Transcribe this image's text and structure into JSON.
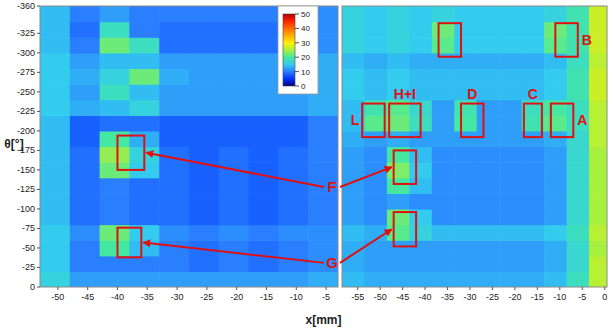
{
  "chart_data": {
    "type": "heatmap",
    "ylabel": "θ[°]",
    "xlabel": "x[mm]",
    "ylim": [
      0,
      -360
    ],
    "yticks": [
      -360,
      -325,
      -300,
      -275,
      -250,
      -225,
      -200,
      -175,
      -150,
      -125,
      -100,
      -75,
      -50,
      -25,
      0
    ],
    "grid": false,
    "colorbar": {
      "range": [
        0,
        50
      ],
      "ticks": [
        0,
        10,
        20,
        30,
        40,
        50
      ]
    },
    "panels": [
      {
        "xlim": [
          -53,
          -3
        ],
        "xticks": [
          -50,
          -45,
          -40,
          -35,
          -30,
          -25,
          -20,
          -15,
          -10,
          -5
        ],
        "cells": {
          "x": [
            -53,
            -48,
            -43,
            -38,
            -33,
            -28,
            -23,
            -18,
            -13,
            -8,
            -3
          ],
          "y": [
            0,
            -20,
            -40,
            -60,
            -80,
            -100,
            -120,
            -140,
            -160,
            -180,
            -200,
            -220,
            -240,
            -260,
            -280,
            -300,
            -320,
            -340,
            -360
          ],
          "values": [
            [
              16,
              12,
              12,
              12,
              12,
              12,
              12,
              12,
              12,
              13
            ],
            [
              15,
              10,
              10,
              10,
              10,
              9,
              10,
              9,
              10,
              11
            ],
            [
              15,
              10,
              20,
              14,
              10,
              9,
              10,
              9,
              10,
              11
            ],
            [
              15,
              11,
              22,
              15,
              11,
              10,
              11,
              10,
              11,
              11
            ],
            [
              14,
              9,
              10,
              9,
              9,
              8,
              9,
              8,
              9,
              10
            ],
            [
              14,
              9,
              10,
              9,
              9,
              8,
              9,
              8,
              9,
              10
            ],
            [
              14,
              9,
              10,
              9,
              9,
              8,
              9,
              8,
              9,
              10
            ],
            [
              14,
              9,
              22,
              15,
              9,
              8,
              9,
              8,
              9,
              10
            ],
            [
              14,
              9,
              24,
              16,
              9,
              8,
              9,
              8,
              9,
              10
            ],
            [
              14,
              8,
              20,
              13,
              8,
              8,
              8,
              8,
              8,
              10
            ],
            [
              14,
              8,
              9,
              9,
              8,
              8,
              8,
              8,
              8,
              10
            ],
            [
              15,
              13,
              14,
              16,
              12,
              12,
              12,
              12,
              12,
              13
            ],
            [
              15,
              12,
              18,
              14,
              12,
              12,
              12,
              12,
              12,
              13
            ],
            [
              15,
              13,
              16,
              22,
              13,
              12,
              12,
              12,
              12,
              13
            ],
            [
              15,
              12,
              14,
              14,
              12,
              12,
              12,
              12,
              12,
              13
            ],
            [
              14,
              10,
              22,
              18,
              9,
              9,
              9,
              9,
              9,
              11
            ],
            [
              14,
              9,
              18,
              10,
              9,
              9,
              9,
              9,
              9,
              11
            ],
            [
              14,
              10,
              12,
              10,
              10,
              10,
              10,
              10,
              10,
              11
            ]
          ]
        }
      },
      {
        "xlim": [
          -58.5,
          0.5
        ],
        "xticks": [
          -55,
          -50,
          -45,
          -40,
          -35,
          -30,
          -25,
          -20,
          -15,
          -10,
          -5,
          0
        ],
        "cells": {
          "x": [
            -58.5,
            -53.5,
            -48.5,
            -43.5,
            -38.5,
            -33.5,
            -28.5,
            -23.5,
            -18.5,
            -13.5,
            -8.5,
            -3.5,
            0.5
          ],
          "y": [
            0,
            -20,
            -40,
            -60,
            -80,
            -100,
            -120,
            -140,
            -160,
            -180,
            -200,
            -220,
            -240,
            -260,
            -280,
            -300,
            -320,
            -340,
            -360
          ],
          "values": [
            [
              14,
              13,
              13,
              13,
              13,
              13,
              13,
              13,
              13,
              14,
              18,
              26
            ],
            [
              13,
              12,
              12,
              12,
              12,
              12,
              12,
              12,
              12,
              13,
              17,
              26
            ],
            [
              13,
              12,
              12,
              12,
              12,
              12,
              12,
              12,
              12,
              13,
              17,
              25
            ],
            [
              14,
              13,
              21,
              16,
              14,
              14,
              14,
              14,
              14,
              15,
              18,
              26
            ],
            [
              12,
              11,
              22,
              15,
              11,
              11,
              11,
              11,
              11,
              12,
              17,
              25
            ],
            [
              12,
              11,
              12,
              11,
              11,
              11,
              11,
              11,
              11,
              12,
              17,
              25
            ],
            [
              12,
              11,
              20,
              14,
              11,
              11,
              11,
              11,
              11,
              12,
              17,
              25
            ],
            [
              12,
              11,
              23,
              15,
              11,
              11,
              11,
              11,
              11,
              12,
              17,
              25
            ],
            [
              12,
              11,
              20,
              14,
              11,
              11,
              11,
              11,
              11,
              12,
              17,
              25
            ],
            [
              13,
              12,
              13,
              12,
              12,
              12,
              12,
              12,
              12,
              13,
              17,
              26
            ],
            [
              14,
              21,
              22,
              18,
              12,
              20,
              12,
              12,
              19,
              21,
              18,
              26
            ],
            [
              14,
              19,
              21,
              17,
              12,
              19,
              12,
              12,
              18,
              20,
              18,
              26
            ],
            [
              15,
              14,
              15,
              14,
              14,
              14,
              14,
              14,
              14,
              15,
              19,
              27
            ],
            [
              15,
              14,
              15,
              14,
              14,
              14,
              14,
              14,
              14,
              15,
              19,
              27
            ],
            [
              14,
              13,
              14,
              13,
              13,
              13,
              13,
              13,
              13,
              14,
              18,
              26
            ],
            [
              16,
              15,
              16,
              15,
              21,
              15,
              15,
              15,
              15,
              21,
              19,
              27
            ],
            [
              16,
              15,
              16,
              15,
              22,
              15,
              15,
              15,
              15,
              22,
              19,
              27
            ],
            [
              16,
              15,
              16,
              15,
              16,
              15,
              15,
              15,
              15,
              16,
              19,
              27
            ]
          ]
        }
      }
    ],
    "annotations": [
      {
        "text": "F",
        "boxes": [
          {
            "panel": 0,
            "x": [
              -40,
              -35.5
            ],
            "y": [
              -194,
              -150
            ]
          },
          {
            "panel": 1,
            "x": [
              -47,
              -42
            ],
            "y": [
              -175,
              -132
            ]
          }
        ]
      },
      {
        "text": "G",
        "boxes": [
          {
            "panel": 0,
            "x": [
              -40,
              -36
            ],
            "y": [
              -76,
              -38
            ]
          },
          {
            "panel": 1,
            "x": [
              -47,
              -42
            ],
            "y": [
              -96,
              -52
            ]
          }
        ]
      },
      {
        "text": "A",
        "boxes": [
          {
            "panel": 1,
            "x": [
              -12,
              -7
            ],
            "y": [
              -235,
              -192
            ]
          }
        ]
      },
      {
        "text": "B",
        "boxes": [
          {
            "panel": 1,
            "x": [
              -11,
              -6
            ],
            "y": [
              -338,
              -295
            ]
          }
        ]
      },
      {
        "text": "C",
        "boxes": [
          {
            "panel": 1,
            "x": [
              -18,
              -14
            ],
            "y": [
              -235,
              -192
            ]
          }
        ]
      },
      {
        "text": "D",
        "boxes": [
          {
            "panel": 1,
            "x": [
              -32,
              -27
            ],
            "y": [
              -235,
              -192
            ]
          }
        ]
      },
      {
        "text": "H+I",
        "boxes": [
          {
            "panel": 1,
            "x": [
              -48,
              -41
            ],
            "y": [
              -235,
              -192
            ]
          }
        ]
      },
      {
        "text": "L",
        "boxes": [
          {
            "panel": 1,
            "x": [
              -54,
              -49
            ],
            "y": [
              -235,
              -192
            ]
          }
        ]
      },
      {
        "boxes": [
          {
            "panel": 1,
            "x": [
              -37,
              -32
            ],
            "y": [
              -338,
              -295
            ]
          }
        ]
      }
    ]
  }
}
